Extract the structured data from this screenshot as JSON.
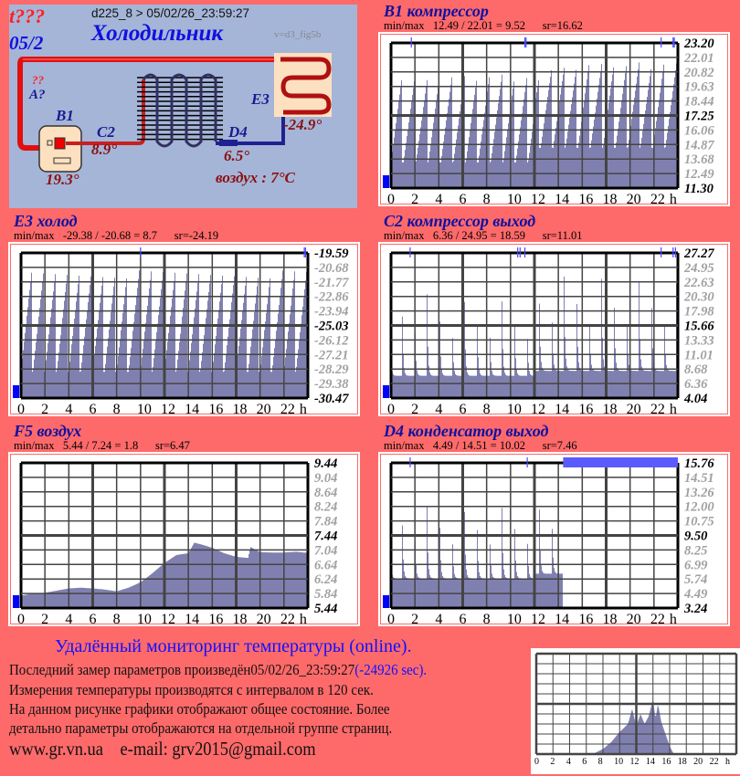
{
  "header": {
    "status": "t???",
    "date_short": "05/2",
    "device_line": "d225_8  >  05/02/26_23:59:27",
    "title": "Холодильник",
    "version": "v=d3_fig5b"
  },
  "schematic": {
    "unknown_mark": "??",
    "a_label": "A?",
    "b1_label": "B1",
    "b1_value": "19.3°",
    "c2_label": "C2",
    "c2_value": "8.9°",
    "d4_label": "D4",
    "d4_value": "6.5°",
    "e3_label": "E3",
    "e3_value": "-24.9°",
    "air": "воздух : 7°C",
    "colors": {
      "hot": "#e01010",
      "cold": "#202090",
      "bg": "#a5b5d8"
    }
  },
  "chart_data": [
    {
      "id": "b1",
      "type": "area",
      "title": "B1 компрессор",
      "minmax": "min/max   12.49 / 22.01 = 9.52      sr=16.62",
      "y_ticks": [
        "23.20",
        "22.01",
        "20.82",
        "19.63",
        "18.44",
        "17.25",
        "16.06",
        "14.87",
        "13.68",
        "12.49",
        "11.30"
      ],
      "ylim": [
        11.3,
        23.2
      ],
      "x_ticks": [
        "0",
        "2",
        "4",
        "6",
        "8",
        "10",
        "12",
        "14",
        "16",
        "18",
        "20",
        "22",
        "h"
      ],
      "xlim": [
        0,
        24
      ],
      "markers_h": [
        1.7,
        11.2,
        11.3,
        22.6,
        23.6,
        23.7
      ],
      "series": {
        "shape": "ramp",
        "low": 13.4,
        "low2": 14.6,
        "peaks": [
          20.6,
          20.3,
          20.2,
          20.6,
          20.6,
          20.5,
          20.5,
          20.6,
          20.6,
          20.4,
          20.5,
          20.6,
          21.3,
          21.3,
          21.5,
          21.7,
          21.6,
          21.7,
          21.6,
          21.7,
          21.5,
          21.7,
          21.6
        ]
      }
    },
    {
      "id": "e3",
      "type": "area",
      "title": "E3 холод",
      "minmax": "min/max   -29.38 / -20.68 = 8.7      sr=-24.19",
      "y_ticks": [
        "-19.59",
        "-20.68",
        "-21.77",
        "-22.86",
        "-23.94",
        "-25.03",
        "-26.12",
        "-27.21",
        "-28.29",
        "-29.38",
        "-30.47"
      ],
      "ylim": [
        -30.47,
        -19.59
      ],
      "x_ticks": [
        "0",
        "2",
        "4",
        "6",
        "8",
        "10",
        "12",
        "14",
        "16",
        "18",
        "20",
        "22",
        "h"
      ],
      "xlim": [
        0,
        24
      ],
      "markers_h": [
        10.0,
        23.7,
        23.8
      ],
      "series": {
        "shape": "ramp",
        "low": -28.5,
        "low2": -28.5,
        "peaks": [
          -20.9,
          -20.9,
          -20.9,
          -20.9,
          -20.9,
          -20.9,
          -20.9,
          -20.9,
          -20.9,
          -20.9,
          -20.9,
          -20.9,
          -20.9,
          -20.9,
          -20.9,
          -20.9,
          -20.9,
          -20.9,
          -20.9,
          -20.9,
          -20.9,
          -20.9,
          -20.9,
          -20.9
        ]
      }
    },
    {
      "id": "c2",
      "type": "area",
      "title": "C2 компрессор выход",
      "minmax": "min/max   6.36 / 24.95 = 18.59      sr=11.01",
      "y_ticks": [
        "27.27",
        "24.95",
        "22.63",
        "20.30",
        "17.98",
        "15.66",
        "13.33",
        "11.01",
        "8.68",
        "6.36",
        "4.04"
      ],
      "ylim": [
        4.04,
        27.27
      ],
      "x_ticks": [
        "0",
        "2",
        "4",
        "6",
        "8",
        "10",
        "12",
        "14",
        "16",
        "18",
        "20",
        "22",
        "h"
      ],
      "xlim": [
        0,
        24
      ],
      "markers_h": [
        1.6,
        10.6,
        10.8,
        11.2,
        22.6,
        23.6,
        23.8
      ],
      "series": {
        "shape": "spike",
        "low": 7.6,
        "low2": 8.4,
        "peaks": [
          23.2,
          23.3,
          23.3,
          22.5,
          22.4,
          22.5,
          22.5,
          23.2,
          23.3,
          22.5,
          23.5,
          23.2,
          23.6,
          23.6,
          23.8,
          23.8,
          23.9,
          23.6,
          23.7,
          24.0,
          24.2,
          24.3,
          24.5
        ]
      }
    },
    {
      "id": "f5",
      "type": "area",
      "title": "F5 воздух",
      "minmax": "min/max   5.44 / 7.24 = 1.8      sr=6.47",
      "y_ticks": [
        "9.44",
        "9.04",
        "8.64",
        "8.24",
        "7.84",
        "7.44",
        "7.04",
        "6.64",
        "6.24",
        "5.84",
        "5.44"
      ],
      "ylim": [
        5.44,
        9.44
      ],
      "x_ticks": [
        "0",
        "2",
        "4",
        "6",
        "8",
        "10",
        "12",
        "14",
        "16",
        "18",
        "20",
        "22",
        "h"
      ],
      "xlim": [
        0,
        24
      ],
      "markers_h": [],
      "series": {
        "shape": "profile",
        "hours": [
          0,
          1,
          2,
          3,
          4,
          5,
          6,
          7,
          8,
          9,
          10,
          11,
          12,
          13,
          14,
          14.5,
          15,
          16,
          17,
          18,
          19,
          19.2,
          20,
          21,
          22,
          23,
          24
        ],
        "values": [
          5.78,
          5.84,
          5.86,
          5.92,
          5.98,
          6.0,
          5.98,
          5.95,
          5.9,
          6.0,
          6.15,
          6.4,
          6.68,
          6.9,
          6.95,
          7.24,
          7.2,
          7.1,
          6.95,
          6.85,
          6.82,
          7.12,
          6.98,
          6.97,
          6.97,
          6.99,
          6.96
        ]
      }
    },
    {
      "id": "d4",
      "type": "area",
      "title": "D4 конденсатор выход",
      "minmax": "min/max   4.49 / 14.51 = 10.02      sr=7.46",
      "y_ticks": [
        "15.76",
        "14.51",
        "13.26",
        "12.00",
        "10.75",
        "9.50",
        "8.25",
        "6.99",
        "5.74",
        "4.49",
        "3.24"
      ],
      "ylim": [
        3.24,
        15.76
      ],
      "x_ticks": [
        "0",
        "2",
        "4",
        "6",
        "8",
        "10",
        "12",
        "14",
        "16",
        "18",
        "20",
        "22",
        "h"
      ],
      "xlim": [
        0,
        24
      ],
      "markers_h": [
        1.6,
        11.4
      ],
      "no_data_from_h": 14.4,
      "series": {
        "shape": "spike",
        "low": 5.8,
        "low2": 6.2,
        "end": 14.4,
        "peaks": [
          13.3,
          13.3,
          13.3,
          13.3,
          13.0,
          13.0,
          13.3,
          13.3,
          13.8,
          13.8,
          13.8,
          13.8,
          13.8,
          13.8,
          14.0,
          14.0,
          14.2,
          13.8,
          14.0,
          14.0,
          14.0,
          14.0,
          14.0
        ]
      }
    }
  ],
  "mini_chart": {
    "x_ticks": [
      "0",
      "2",
      "4",
      "6",
      "8",
      "10",
      "12",
      "14",
      "16",
      "18",
      "20",
      "22",
      "h"
    ],
    "hours": [
      0,
      7,
      8,
      9,
      10,
      11,
      11.5,
      12,
      12.5,
      13,
      13.5,
      14,
      14.3,
      14.6,
      15,
      15.5,
      16,
      16.5,
      24
    ],
    "values": [
      0.01,
      0.01,
      0.05,
      0.12,
      0.22,
      0.3,
      0.45,
      0.28,
      0.4,
      0.3,
      0.38,
      0.55,
      0.35,
      0.5,
      0.32,
      0.2,
      0.08,
      0.0,
      0.0
    ]
  },
  "footer": {
    "heading": "Удалённый мониторинг температуры (online).",
    "last_measure": "Последний замер параметров произведён05/02/26_23:59:27",
    "last_measure_delta": "(-24926 sec).",
    "interval": "Измерения температуры  производятся с интервалом в 120 сек.",
    "note1": "На данном рисунке графики отображают общее состояние. Более",
    "note2": "детально параметры отображаются на отдельной группе страниц.",
    "website": "www.gr.vn.ua",
    "email": "e-mail: grv2015@gmail.com"
  },
  "colors": {
    "page_bg": "#fe6a6a",
    "bar": "#8080b0",
    "accent_blue": "#0000ff",
    "title_navy": "#1010a0"
  }
}
